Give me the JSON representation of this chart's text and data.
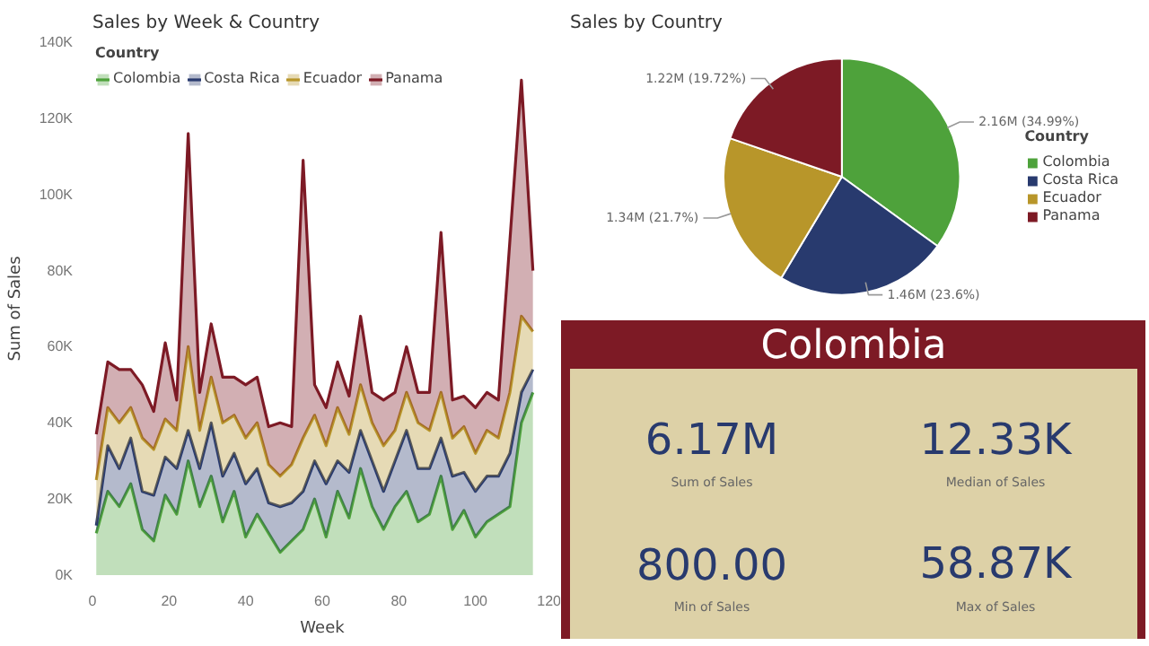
{
  "chart_data": [
    {
      "type": "area",
      "stacked": true,
      "title": "Sales by Week & Country",
      "xlabel": "Week",
      "ylabel": "Sum of Sales",
      "legend_title": "Country",
      "legend": "top",
      "grid": false,
      "x": [
        1,
        4,
        7,
        10,
        13,
        16,
        19,
        22,
        25,
        28,
        31,
        34,
        37,
        40,
        43,
        46,
        49,
        52,
        55,
        58,
        61,
        64,
        67,
        70,
        73,
        76,
        79,
        82,
        85,
        88,
        91,
        94,
        97,
        100,
        103,
        106,
        109,
        112,
        115
      ],
      "xlim": [
        0,
        120
      ],
      "xticks": [
        0,
        20,
        40,
        60,
        80,
        100,
        120
      ],
      "ylim": [
        0,
        140000
      ],
      "yticks": [
        {
          "value": 0,
          "label": "0K"
        },
        {
          "value": 20000,
          "label": "20K"
        },
        {
          "value": 40000,
          "label": "40K"
        },
        {
          "value": 60000,
          "label": "60K"
        },
        {
          "value": 80000,
          "label": "80K"
        },
        {
          "value": 100000,
          "label": "100K"
        },
        {
          "value": 120000,
          "label": "120K"
        },
        {
          "value": 140000,
          "label": "140K"
        }
      ],
      "series": [
        {
          "name": "Colombia",
          "color": "#4ea23b",
          "values": [
            11000,
            22000,
            18000,
            24000,
            12000,
            9000,
            21000,
            16000,
            30000,
            18000,
            26000,
            14000,
            22000,
            10000,
            16000,
            11000,
            6000,
            9000,
            12000,
            20000,
            10000,
            22000,
            15000,
            28000,
            18000,
            12000,
            18000,
            22000,
            14000,
            16000,
            26000,
            12000,
            17000,
            10000,
            14000,
            16000,
            18000,
            40000,
            48000
          ]
        },
        {
          "name": "Costa Rica",
          "color": "#283a6e",
          "values": [
            2000,
            12000,
            10000,
            12000,
            10000,
            12000,
            10000,
            12000,
            8000,
            10000,
            14000,
            12000,
            10000,
            14000,
            12000,
            8000,
            12000,
            10000,
            10000,
            10000,
            14000,
            8000,
            12000,
            10000,
            12000,
            10000,
            12000,
            16000,
            14000,
            12000,
            10000,
            14000,
            10000,
            12000,
            12000,
            10000,
            14000,
            8000,
            6000
          ]
        },
        {
          "name": "Ecuador",
          "color": "#b8962a",
          "values": [
            12000,
            10000,
            12000,
            8000,
            14000,
            12000,
            10000,
            10000,
            22000,
            10000,
            12000,
            14000,
            10000,
            12000,
            12000,
            10000,
            8000,
            10000,
            14000,
            12000,
            10000,
            14000,
            10000,
            12000,
            10000,
            12000,
            8000,
            10000,
            12000,
            10000,
            12000,
            10000,
            12000,
            10000,
            12000,
            10000,
            16000,
            20000,
            10000
          ]
        },
        {
          "name": "Panama",
          "color": "#7d1a25",
          "values": [
            12000,
            12000,
            14000,
            10000,
            14000,
            10000,
            20000,
            8000,
            56000,
            10000,
            14000,
            12000,
            10000,
            14000,
            12000,
            10000,
            14000,
            10000,
            73000,
            8000,
            10000,
            12000,
            10000,
            18000,
            8000,
            12000,
            10000,
            12000,
            8000,
            10000,
            42000,
            10000,
            8000,
            12000,
            10000,
            10000,
            40000,
            62000,
            16000
          ]
        }
      ]
    },
    {
      "type": "pie",
      "title": "Sales by Country",
      "legend_title": "Country",
      "legend": "right",
      "categories": [
        "Colombia",
        "Costa Rica",
        "Ecuador",
        "Panama"
      ],
      "values": [
        34.99,
        23.6,
        21.7,
        19.72
      ],
      "value_labels": [
        "2.16M (34.99%)",
        "1.46M (23.6%)",
        "1.34M (21.7%)",
        "1.22M (19.72%)"
      ],
      "colors": [
        "#4ea23b",
        "#283a6e",
        "#b8962a",
        "#7d1a25"
      ]
    },
    {
      "type": "other",
      "title": "Colombia",
      "annotations": [
        "6.17M",
        "Sum of Sales",
        "12.33K",
        "Median of Sales",
        "800.00",
        "Min of Sales",
        "58.87K",
        "Max of Sales"
      ]
    }
  ]
}
